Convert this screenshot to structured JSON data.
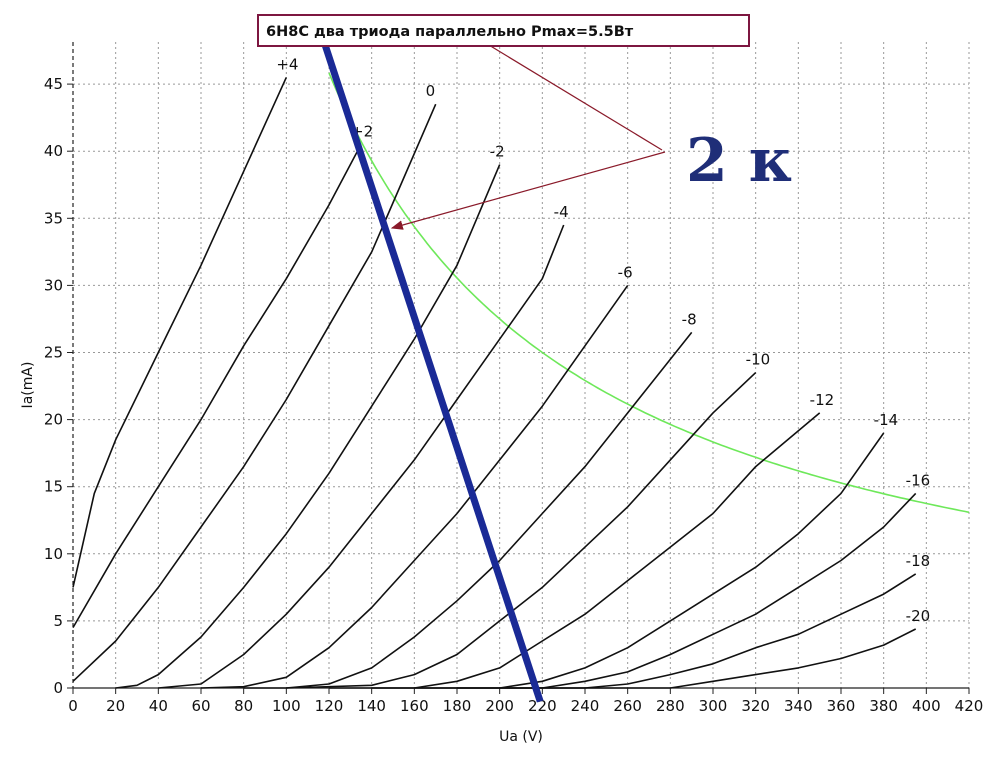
{
  "chart_data": {
    "type": "line",
    "title": "6Н8С два триода параллельно Pmax=5.5Вт",
    "xlabel": "Ua (V)",
    "ylabel": "Ia(mA)",
    "xlim": [
      0,
      420
    ],
    "ylim": [
      0,
      48
    ],
    "x_ticks": [
      "0",
      "20",
      "40",
      "60",
      "80",
      "100",
      "120",
      "140",
      "160",
      "180",
      "200",
      "220",
      "240",
      "260",
      "280",
      "300",
      "320",
      "340",
      "360",
      "380",
      "400",
      "420"
    ],
    "y_ticks": [
      "0",
      "5",
      "10",
      "15",
      "20",
      "25",
      "30",
      "35",
      "40",
      "45"
    ],
    "grid": true,
    "annotation": "2 к",
    "series": [
      {
        "name": "+4",
        "points": [
          [
            0,
            7.5
          ],
          [
            10,
            14.5
          ],
          [
            20,
            18.5
          ],
          [
            40,
            25
          ],
          [
            60,
            31.5
          ],
          [
            80,
            38.5
          ],
          [
            100,
            45.5
          ]
        ]
      },
      {
        "name": "+2",
        "points": [
          [
            0,
            4.5
          ],
          [
            20,
            10
          ],
          [
            40,
            15
          ],
          [
            60,
            20
          ],
          [
            80,
            25.5
          ],
          [
            100,
            30.5
          ],
          [
            120,
            36
          ],
          [
            135,
            40.5
          ]
        ]
      },
      {
        "name": "0",
        "points": [
          [
            0,
            0.5
          ],
          [
            20,
            3.5
          ],
          [
            40,
            7.5
          ],
          [
            60,
            12
          ],
          [
            80,
            16.5
          ],
          [
            100,
            21.5
          ],
          [
            120,
            27
          ],
          [
            140,
            32.5
          ],
          [
            170,
            43.5
          ]
        ]
      },
      {
        "name": "-2",
        "points": [
          [
            20,
            0
          ],
          [
            30,
            0.2
          ],
          [
            40,
            1
          ],
          [
            60,
            3.8
          ],
          [
            80,
            7.5
          ],
          [
            100,
            11.5
          ],
          [
            120,
            16
          ],
          [
            140,
            21
          ],
          [
            160,
            26
          ],
          [
            180,
            31.5
          ],
          [
            200,
            39
          ]
        ]
      },
      {
        "name": "-4",
        "points": [
          [
            40,
            0
          ],
          [
            60,
            0.3
          ],
          [
            80,
            2.5
          ],
          [
            100,
            5.5
          ],
          [
            120,
            9
          ],
          [
            140,
            13
          ],
          [
            160,
            17
          ],
          [
            180,
            21.5
          ],
          [
            200,
            26
          ],
          [
            220,
            30.5
          ],
          [
            230,
            34.5
          ]
        ]
      },
      {
        "name": "-6",
        "points": [
          [
            60,
            0
          ],
          [
            80,
            0.1
          ],
          [
            100,
            0.8
          ],
          [
            120,
            3
          ],
          [
            140,
            6
          ],
          [
            160,
            9.5
          ],
          [
            180,
            13
          ],
          [
            200,
            17
          ],
          [
            220,
            21
          ],
          [
            240,
            25.5
          ],
          [
            260,
            30
          ]
        ]
      },
      {
        "name": "-8",
        "points": [
          [
            80,
            0
          ],
          [
            100,
            0
          ],
          [
            120,
            0.3
          ],
          [
            140,
            1.5
          ],
          [
            160,
            3.8
          ],
          [
            180,
            6.5
          ],
          [
            200,
            9.5
          ],
          [
            220,
            13
          ],
          [
            240,
            16.5
          ],
          [
            260,
            20.5
          ],
          [
            290,
            26.5
          ]
        ]
      },
      {
        "name": "-10",
        "points": [
          [
            100,
            0
          ],
          [
            140,
            0.2
          ],
          [
            160,
            1
          ],
          [
            180,
            2.5
          ],
          [
            200,
            5
          ],
          [
            220,
            7.5
          ],
          [
            240,
            10.5
          ],
          [
            260,
            13.5
          ],
          [
            280,
            17
          ],
          [
            300,
            20.5
          ],
          [
            320,
            23.5
          ]
        ]
      },
      {
        "name": "-12",
        "points": [
          [
            120,
            0
          ],
          [
            160,
            0
          ],
          [
            180,
            0.5
          ],
          [
            200,
            1.5
          ],
          [
            220,
            3.5
          ],
          [
            240,
            5.5
          ],
          [
            260,
            8
          ],
          [
            280,
            10.5
          ],
          [
            300,
            13
          ],
          [
            320,
            16.5
          ],
          [
            350,
            20.5
          ]
        ]
      },
      {
        "name": "-14",
        "points": [
          [
            140,
            0
          ],
          [
            200,
            0
          ],
          [
            220,
            0.5
          ],
          [
            240,
            1.5
          ],
          [
            260,
            3
          ],
          [
            280,
            5
          ],
          [
            300,
            7
          ],
          [
            320,
            9
          ],
          [
            340,
            11.5
          ],
          [
            360,
            14.5
          ],
          [
            380,
            19
          ]
        ]
      },
      {
        "name": "-16",
        "points": [
          [
            160,
            0
          ],
          [
            220,
            0
          ],
          [
            240,
            0.5
          ],
          [
            260,
            1.2
          ],
          [
            280,
            2.5
          ],
          [
            300,
            4
          ],
          [
            320,
            5.5
          ],
          [
            340,
            7.5
          ],
          [
            360,
            9.5
          ],
          [
            380,
            12
          ],
          [
            395,
            14.5
          ]
        ]
      },
      {
        "name": "-18",
        "points": [
          [
            180,
            0
          ],
          [
            240,
            0
          ],
          [
            260,
            0.3
          ],
          [
            280,
            1
          ],
          [
            300,
            1.8
          ],
          [
            320,
            3
          ],
          [
            340,
            4
          ],
          [
            360,
            5.5
          ],
          [
            380,
            7
          ],
          [
            395,
            8.5
          ]
        ]
      },
      {
        "name": "-20",
        "points": [
          [
            200,
            0
          ],
          [
            280,
            0
          ],
          [
            300,
            0.5
          ],
          [
            320,
            1
          ],
          [
            340,
            1.5
          ],
          [
            360,
            2.2
          ],
          [
            380,
            3.2
          ],
          [
            395,
            4.4
          ]
        ]
      }
    ],
    "pmax_curve": {
      "power_w": 5.5,
      "x_from": 120,
      "x_to": 420
    },
    "load_line": {
      "points": [
        [
          118,
          48
        ],
        [
          219,
          -1
        ]
      ]
    }
  },
  "colors": {
    "curves": "#111111",
    "grid": "#999999",
    "pmax": "#6ee85a",
    "load_line": "#1a2a96",
    "annotation": "#1f2e78",
    "title_border": "#7d1640",
    "arrow": "#8a1a2a"
  }
}
